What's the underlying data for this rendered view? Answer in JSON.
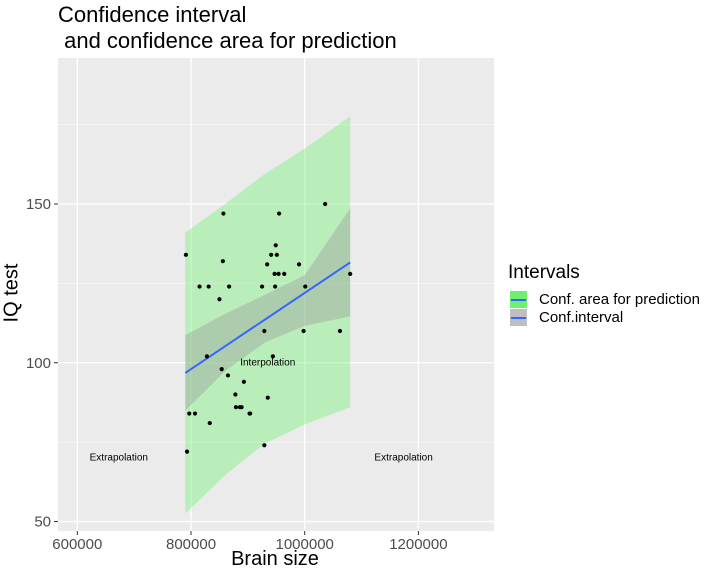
{
  "chart_data": {
    "type": "scatter",
    "title": "Confidence interval\n and confidence area for prediction",
    "xlabel": "Brain size",
    "ylabel": "IQ test",
    "xlim": [
      566000,
      1333000
    ],
    "ylim": [
      47,
      196
    ],
    "x_ticks": [
      600000,
      800000,
      1000000,
      1200000
    ],
    "x_tick_labels": [
      "600000",
      "800000",
      "1000000",
      "1200000"
    ],
    "y_ticks": [
      50,
      100,
      150
    ],
    "y_tick_labels": [
      "50",
      "100",
      "150"
    ],
    "grid": true,
    "legend_position": "right",
    "legend": {
      "title": "Intervals",
      "entries": [
        {
          "label": "Conf. area for prediction",
          "fill": "#6ef06e",
          "line": "#3366ff"
        },
        {
          "label": "Conf.interval",
          "fill": "#bfbfbf",
          "line": "#3366ff"
        }
      ]
    },
    "points": [
      {
        "x": 791000,
        "y": 134
      },
      {
        "x": 793000,
        "y": 72
      },
      {
        "x": 797000,
        "y": 84
      },
      {
        "x": 807000,
        "y": 84
      },
      {
        "x": 815000,
        "y": 124
      },
      {
        "x": 828000,
        "y": 102
      },
      {
        "x": 831000,
        "y": 124
      },
      {
        "x": 833000,
        "y": 81
      },
      {
        "x": 850000,
        "y": 120
      },
      {
        "x": 854000,
        "y": 98
      },
      {
        "x": 856000,
        "y": 132
      },
      {
        "x": 857000,
        "y": 147
      },
      {
        "x": 865000,
        "y": 96
      },
      {
        "x": 867000,
        "y": 124
      },
      {
        "x": 878000,
        "y": 90
      },
      {
        "x": 879000,
        "y": 86
      },
      {
        "x": 886000,
        "y": 86
      },
      {
        "x": 889000,
        "y": 86
      },
      {
        "x": 893000,
        "y": 94
      },
      {
        "x": 903000,
        "y": 84
      },
      {
        "x": 904000,
        "y": 84
      },
      {
        "x": 925000,
        "y": 124
      },
      {
        "x": 929000,
        "y": 74
      },
      {
        "x": 929000,
        "y": 110
      },
      {
        "x": 934000,
        "y": 131
      },
      {
        "x": 935000,
        "y": 89
      },
      {
        "x": 941000,
        "y": 134
      },
      {
        "x": 944000,
        "y": 102
      },
      {
        "x": 947000,
        "y": 128
      },
      {
        "x": 948000,
        "y": 124
      },
      {
        "x": 949000,
        "y": 137
      },
      {
        "x": 951000,
        "y": 134
      },
      {
        "x": 954000,
        "y": 128
      },
      {
        "x": 955000,
        "y": 147
      },
      {
        "x": 964000,
        "y": 128
      },
      {
        "x": 990000,
        "y": 131
      },
      {
        "x": 998000,
        "y": 110
      },
      {
        "x": 1001000,
        "y": 124
      },
      {
        "x": 1036000,
        "y": 150
      },
      {
        "x": 1062000,
        "y": 110
      },
      {
        "x": 1080000,
        "y": 128
      }
    ],
    "fit_line": {
      "x": [
        790000,
        1080000
      ],
      "y": [
        96.8,
        131.6
      ]
    },
    "confidence_interval": {
      "x": [
        790000,
        860000,
        930000,
        1000000,
        1080000
      ],
      "lower": [
        84.9,
        97.4,
        106.4,
        111.6,
        114.6
      ],
      "upper": [
        108.7,
        115.4,
        121.4,
        127.6,
        148.6
      ]
    },
    "prediction_area": {
      "x": [
        790000,
        860000,
        930000,
        1000000,
        1080000
      ],
      "lower": [
        52.5,
        64.6,
        74.6,
        80.6,
        86.0
      ],
      "upper": [
        141.0,
        150.0,
        159.5,
        167.5,
        177.6
      ]
    },
    "annotations": [
      {
        "text": "Extrapolation",
        "x": 673000,
        "y": 70
      },
      {
        "text": "Interpolation",
        "x": 935000,
        "y": 100
      },
      {
        "text": "Extrapolation",
        "x": 1174000,
        "y": 70
      }
    ]
  }
}
